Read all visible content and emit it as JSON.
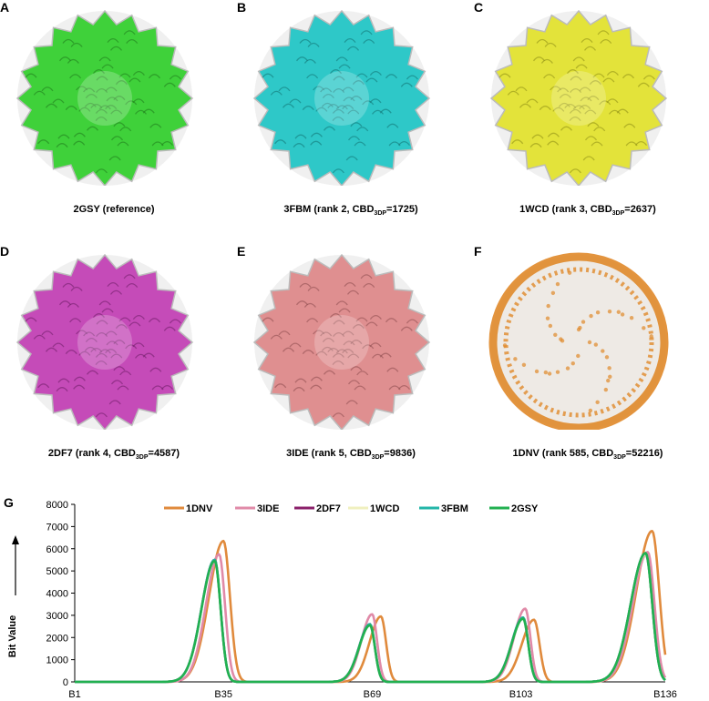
{
  "panels": [
    {
      "letter": "A",
      "name_text": "2GSY (reference)",
      "rank_text": "",
      "cbd_value": "",
      "color": "#3fd13a",
      "dark": "#1f7a1c",
      "style": "solid"
    },
    {
      "letter": "B",
      "name_text": "3FBM (rank 2, CBD",
      "rank_text": "3DP",
      "cbd_value": "=1725)",
      "color": "#2ec8c8",
      "dark": "#137373",
      "style": "solid"
    },
    {
      "letter": "C",
      "name_text": "1WCD (rank 3, CBD",
      "rank_text": "3DP",
      "cbd_value": "=2637)",
      "color": "#e3e33a",
      "dark": "#8c8c14",
      "style": "solid"
    },
    {
      "letter": "D",
      "name_text": "2DF7 (rank 4, CBD",
      "rank_text": "3DP",
      "cbd_value": "=4587)",
      "color": "#c54bb8",
      "dark": "#6e1e66",
      "style": "solid"
    },
    {
      "letter": "E",
      "name_text": "3IDE (rank 5, CBD",
      "rank_text": "3DP",
      "cbd_value": "=9836)",
      "color": "#df8f90",
      "dark": "#8a4b4c",
      "style": "solid"
    },
    {
      "letter": "F",
      "name_text": "1DNV (rank 585, CBD",
      "rank_text": "3DP",
      "cbd_value": "=52216)",
      "color": "#e0892a",
      "dark": "#8a4b0c",
      "style": "sphere"
    }
  ],
  "chart_letter": "G",
  "chart_data": {
    "type": "line",
    "ylabel": "Bit Value",
    "ylim": [
      0,
      8000
    ],
    "yticks": [
      0,
      1000,
      2000,
      3000,
      4000,
      5000,
      6000,
      7000,
      8000
    ],
    "xlim": [
      1,
      136
    ],
    "xtick_labels": [
      {
        "x": 1,
        "label": "B1"
      },
      {
        "x": 35,
        "label": "B35"
      },
      {
        "x": 69,
        "label": "B69"
      },
      {
        "x": 103,
        "label": "B103"
      },
      {
        "x": 136,
        "label": "B136"
      }
    ],
    "legend_position": "top",
    "series": [
      {
        "name": "1DNV",
        "color": "#e08a3c",
        "peaks": [
          {
            "center": 35,
            "height": 6350,
            "width": 3.3
          },
          {
            "center": 71,
            "height": 2950,
            "width": 2.6
          },
          {
            "center": 106,
            "height": 2800,
            "width": 2.8
          },
          {
            "center": 133,
            "height": 6800,
            "width": 3.6
          }
        ]
      },
      {
        "name": "3IDE",
        "color": "#e08aa8",
        "peaks": [
          {
            "center": 34,
            "height": 5750,
            "width": 3.0
          },
          {
            "center": 69,
            "height": 3050,
            "width": 2.5
          },
          {
            "center": 104,
            "height": 3300,
            "width": 2.6
          },
          {
            "center": 132,
            "height": 5850,
            "width": 3.4
          }
        ]
      },
      {
        "name": "2DF7",
        "color": "#8a1f6a",
        "peaks": [
          {
            "center": 33,
            "height": 5500,
            "width": 3.0
          },
          {
            "center": 68.5,
            "height": 2600,
            "width": 2.5
          },
          {
            "center": 103.5,
            "height": 2900,
            "width": 2.6
          },
          {
            "center": 131.5,
            "height": 5800,
            "width": 3.4
          }
        ]
      },
      {
        "name": "1WCD",
        "color": "#f0f0bf",
        "peaks": [
          {
            "center": 33,
            "height": 5450,
            "width": 3.0
          },
          {
            "center": 68.5,
            "height": 2550,
            "width": 2.5
          },
          {
            "center": 103.5,
            "height": 2850,
            "width": 2.6
          },
          {
            "center": 131.5,
            "height": 5750,
            "width": 3.4
          }
        ]
      },
      {
        "name": "3FBM",
        "color": "#22b5a8",
        "peaks": [
          {
            "center": 33,
            "height": 5500,
            "width": 3.0
          },
          {
            "center": 68.5,
            "height": 2600,
            "width": 2.5
          },
          {
            "center": 103.5,
            "height": 2900,
            "width": 2.6
          },
          {
            "center": 131.5,
            "height": 5800,
            "width": 3.4
          }
        ]
      },
      {
        "name": "2GSY",
        "color": "#22b050",
        "peaks": [
          {
            "center": 33,
            "height": 5450,
            "width": 3.0
          },
          {
            "center": 68.5,
            "height": 2550,
            "width": 2.5
          },
          {
            "center": 103.5,
            "height": 2850,
            "width": 2.6
          },
          {
            "center": 131.5,
            "height": 5800,
            "width": 3.4
          }
        ]
      }
    ]
  }
}
